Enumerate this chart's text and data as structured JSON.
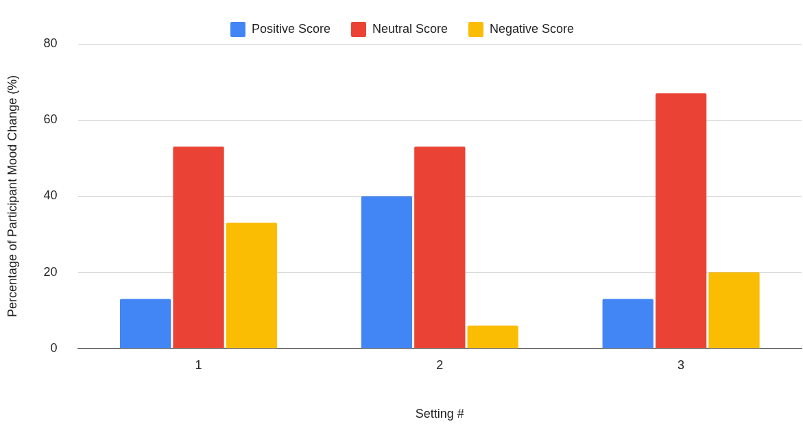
{
  "chart_data": {
    "type": "bar",
    "xlabel": "Setting #",
    "ylabel": "Percentage of Participant Mood Change (%)",
    "categories": [
      "1",
      "2",
      "3"
    ],
    "series": [
      {
        "name": "Positive Score",
        "color": "#4285f4",
        "values": [
          13,
          40,
          13
        ]
      },
      {
        "name": "Neutral Score",
        "color": "#ea4335",
        "values": [
          53,
          53,
          67
        ]
      },
      {
        "name": "Negative Score",
        "color": "#fbbc04",
        "values": [
          33,
          6,
          20
        ]
      }
    ],
    "ylim": [
      0,
      80
    ],
    "yticks": [
      0,
      20,
      40,
      60,
      80
    ],
    "grid": "y",
    "legend": "top"
  }
}
